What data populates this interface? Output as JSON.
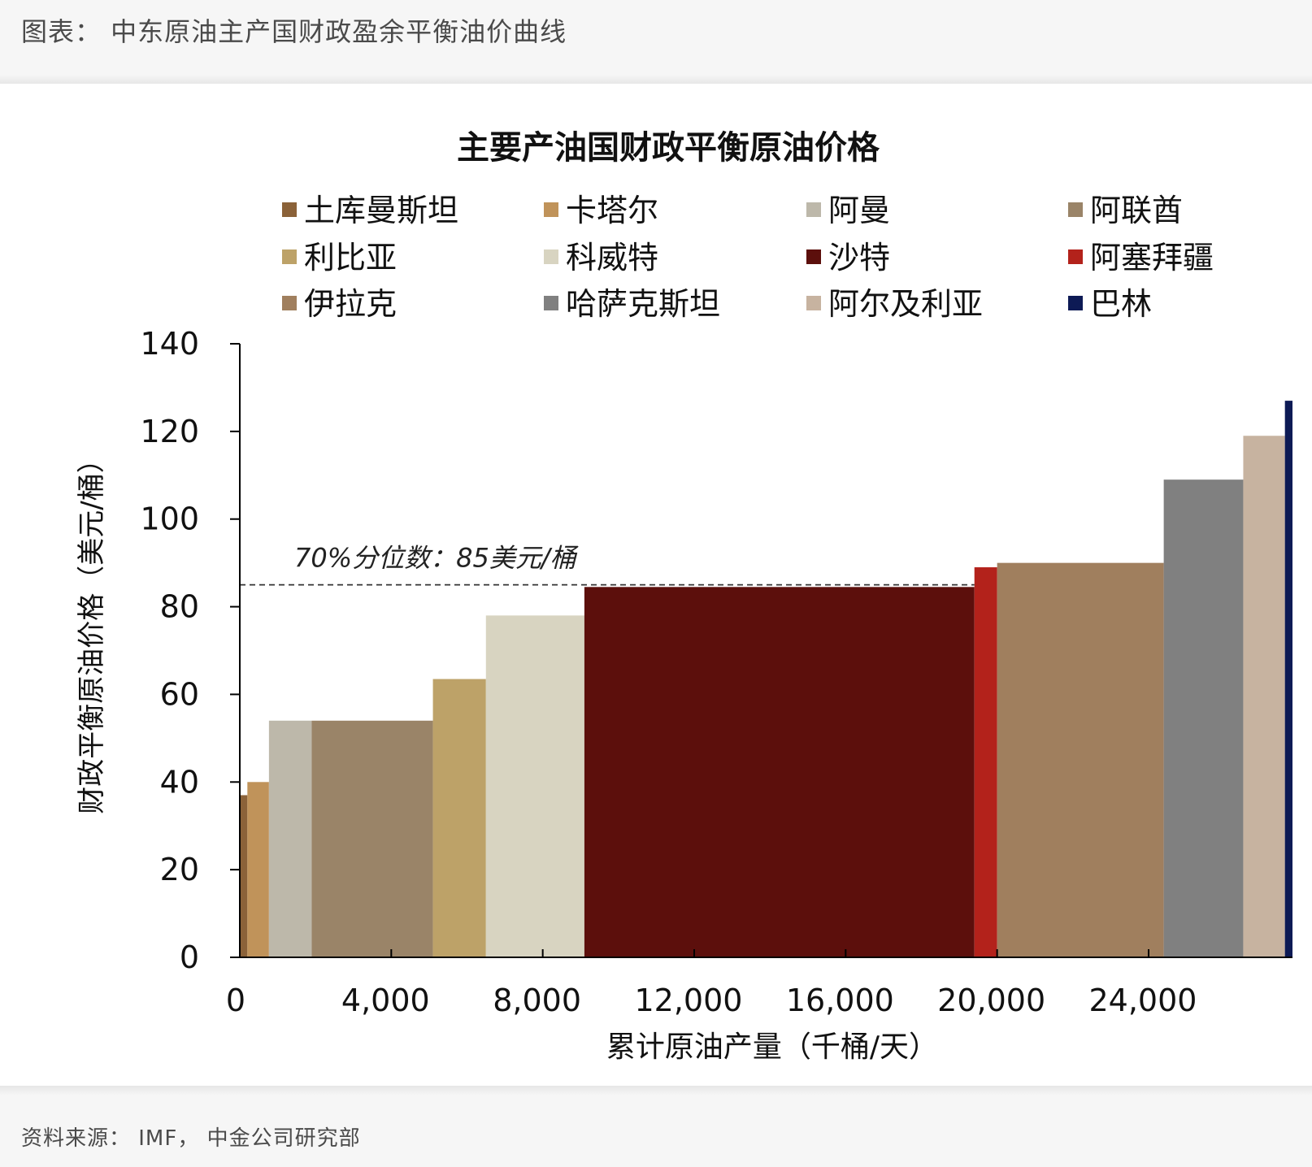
{
  "figure_title": "图表： 中东原油主产国财政盈余平衡油价曲线",
  "source_note": "资料来源： IMF， 中金公司研究部",
  "chart_data": {
    "type": "bar",
    "title": "主要产油国财政平衡原油价格",
    "xlabel": "累计原油产量（千桶/天）",
    "ylabel": "财政平衡原油价格（美元/桶）",
    "xlim": [
      0,
      27800
    ],
    "ylim": [
      0,
      140
    ],
    "x_ticks": [
      0,
      4000,
      8000,
      12000,
      16000,
      20000,
      24000
    ],
    "x_tick_labels": [
      "0",
      "4,000",
      "8,000",
      "12,000",
      "16,000",
      "20,000",
      "24,000"
    ],
    "y_ticks": [
      0,
      20,
      40,
      60,
      80,
      100,
      120,
      140
    ],
    "y_tick_labels": [
      "0",
      "20",
      "40",
      "60",
      "80",
      "100",
      "120",
      "140"
    ],
    "legend_placement": "top",
    "grid": false,
    "series": [
      {
        "name": "土库曼斯坦",
        "x_start": 0,
        "x_end": 200,
        "value": 37,
        "color": "#8B6239"
      },
      {
        "name": "卡塔尔",
        "x_start": 200,
        "x_end": 770,
        "value": 40,
        "color": "#C0935A"
      },
      {
        "name": "阿曼",
        "x_start": 770,
        "x_end": 1900,
        "value": 54,
        "color": "#BDB8AA"
      },
      {
        "name": "阿联酋",
        "x_start": 1900,
        "x_end": 5100,
        "value": 54,
        "color": "#9A8468"
      },
      {
        "name": "利比亚",
        "x_start": 5100,
        "x_end": 6500,
        "value": 63.5,
        "color": "#BDA268"
      },
      {
        "name": "科威特",
        "x_start": 6500,
        "x_end": 9100,
        "value": 78,
        "color": "#D8D4C1"
      },
      {
        "name": "沙特",
        "x_start": 9100,
        "x_end": 19400,
        "value": 84.5,
        "color": "#5C0F0C"
      },
      {
        "name": "阿塞拜疆",
        "x_start": 19400,
        "x_end": 20000,
        "value": 89,
        "color": "#B3221B"
      },
      {
        "name": "伊拉克",
        "x_start": 20000,
        "x_end": 24400,
        "value": 90,
        "color": "#A07F5E"
      },
      {
        "name": "哈萨克斯坦",
        "x_start": 24400,
        "x_end": 26500,
        "value": 109,
        "color": "#808080"
      },
      {
        "name": "阿尔及利亚",
        "x_start": 26500,
        "x_end": 27600,
        "value": 119,
        "color": "#C7B3A0"
      },
      {
        "name": "巴林",
        "x_start": 27600,
        "x_end": 27800,
        "value": 127,
        "color": "#0D1A55"
      }
    ],
    "legend_order": [
      "土库曼斯坦",
      "卡塔尔",
      "阿曼",
      "阿联酋",
      "利比亚",
      "科威特",
      "沙特",
      "阿塞拜疆",
      "伊拉克",
      "哈萨克斯坦",
      "阿尔及利亚",
      "巴林"
    ],
    "reference_line": {
      "value": 85,
      "label": "70%分位数：85美元/桶",
      "style": "dashed"
    }
  }
}
